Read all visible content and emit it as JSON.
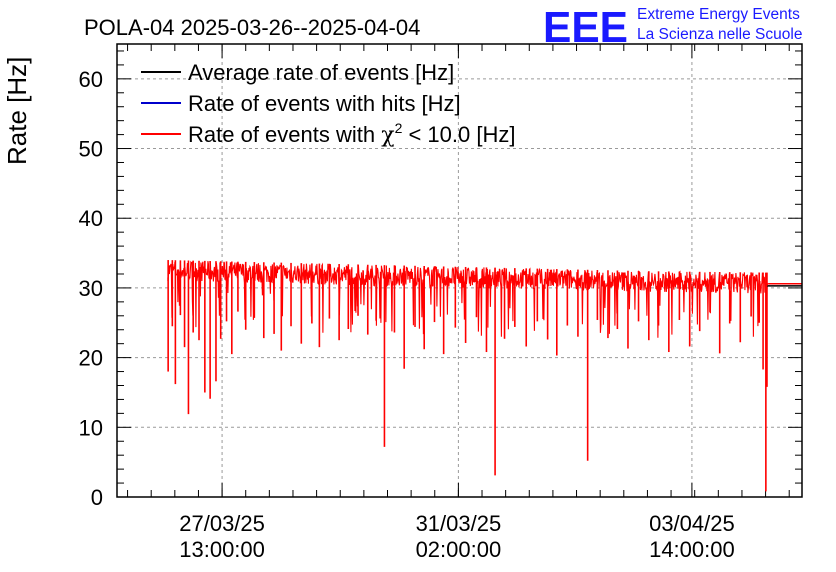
{
  "chart_data": {
    "type": "line",
    "title": "POLA-04 2025-03-26--2025-04-04",
    "ylabel": "Rate [Hz]",
    "xlabel": "",
    "ylim": [
      0,
      65
    ],
    "yticks": [
      0,
      10,
      20,
      30,
      40,
      50,
      60
    ],
    "ytick_labels": [
      "0",
      "10",
      "20",
      "30",
      "40",
      "50",
      "60"
    ],
    "x_unit": "hours since 2025-03-26 00:00",
    "xlim": [
      -0.8,
      245.6
    ],
    "xticks": [
      {
        "x": 37,
        "date": "27/03/25",
        "time": "13:00:00"
      },
      {
        "x": 122,
        "date": "31/03/25",
        "time": "02:00:00"
      },
      {
        "x": 206,
        "date": "03/04/25",
        "time": "14:00:00"
      }
    ],
    "grid": true,
    "legend_position": "top-left",
    "series": [
      {
        "name": "Average rate of events [Hz]",
        "color": "#000000",
        "visible_x": [
          233,
          245.6
        ],
        "values": [
          30.3,
          30.3
        ]
      },
      {
        "name": "Rate of events with hits [Hz]",
        "color": "#0000cc",
        "visible": false
      },
      {
        "name": "Rate of events with χ² < 10.0 [Hz]",
        "legend_prefix": "Rate of events with ",
        "legend_chi": "χ",
        "legend_sup": "2",
        "legend_suffix": " < 10.0 [Hz]",
        "color": "#ff0000",
        "x_start": 17.5,
        "x_end": 233.4,
        "band_top": [
          34.0,
          33.6,
          33.2,
          32.8,
          32.4,
          32.2
        ],
        "band_bottom": [
          31.0,
          30.6,
          30.2,
          29.8,
          29.4,
          29.2
        ],
        "tail_x": [
          233.4,
          245.6
        ],
        "tail_values": [
          30.6,
          30.6
        ],
        "dips": [
          [
            17.6,
            18.0
          ],
          [
            19.1,
            24.5
          ],
          [
            20.2,
            16.2
          ],
          [
            22.0,
            26.1
          ],
          [
            23.5,
            21.5
          ],
          [
            24.9,
            11.9
          ],
          [
            26.6,
            23.6
          ],
          [
            28.7,
            22.5
          ],
          [
            30.8,
            15.0
          ],
          [
            32.7,
            14.1
          ],
          [
            34.8,
            16.6
          ],
          [
            36.5,
            22.7
          ],
          [
            38.6,
            25.2
          ],
          [
            40.5,
            20.5
          ],
          [
            42.7,
            26.6
          ],
          [
            45.5,
            24.0
          ],
          [
            48.6,
            25.7
          ],
          [
            52.0,
            22.8
          ],
          [
            55.7,
            23.4
          ],
          [
            58.3,
            21.0
          ],
          [
            61.8,
            24.5
          ],
          [
            65.5,
            22.0
          ],
          [
            69.3,
            24.9
          ],
          [
            72.0,
            21.5
          ],
          [
            75.6,
            25.6
          ],
          [
            79.1,
            22.5
          ],
          [
            82.4,
            24.1
          ],
          [
            85.9,
            26.0
          ],
          [
            89.4,
            23.3
          ],
          [
            92.4,
            25.3
          ],
          [
            95.4,
            7.2
          ],
          [
            99.0,
            23.6
          ],
          [
            102.5,
            18.4
          ],
          [
            106.4,
            24.4
          ],
          [
            109.7,
            21.2
          ],
          [
            113.4,
            25.1
          ],
          [
            116.7,
            20.5
          ],
          [
            120.9,
            24.3
          ],
          [
            124.6,
            22.1
          ],
          [
            128.5,
            25.8
          ],
          [
            132.1,
            20.8
          ],
          [
            135.2,
            3.1
          ],
          [
            138.6,
            22.7
          ],
          [
            142.3,
            24.4
          ],
          [
            146.4,
            21.6
          ],
          [
            150.4,
            25.2
          ],
          [
            154.1,
            22.6
          ],
          [
            157.4,
            20.3
          ],
          [
            161.2,
            24.6
          ],
          [
            165.0,
            23.0
          ],
          [
            168.5,
            5.2
          ],
          [
            172.0,
            25.4
          ],
          [
            175.8,
            22.8
          ],
          [
            179.2,
            24.1
          ],
          [
            183.0,
            21.3
          ],
          [
            186.8,
            25.2
          ],
          [
            190.5,
            22.5
          ],
          [
            194.0,
            24.6
          ],
          [
            197.7,
            20.8
          ],
          [
            201.5,
            25.4
          ],
          [
            205.2,
            21.6
          ],
          [
            208.8,
            23.8
          ],
          [
            212.5,
            26.5
          ],
          [
            216.0,
            20.6
          ],
          [
            219.6,
            24.9
          ],
          [
            223.4,
            22.2
          ],
          [
            227.3,
            25.9
          ],
          [
            230.2,
            25.0
          ],
          [
            231.6,
            18.3
          ],
          [
            232.6,
            0.8
          ],
          [
            233.0,
            15.8
          ]
        ]
      }
    ]
  },
  "logo": {
    "text": "EEE",
    "color": "#1a1aff",
    "line1": "Extreme Energy Events",
    "line2": "La Scienza nelle Scuole"
  }
}
